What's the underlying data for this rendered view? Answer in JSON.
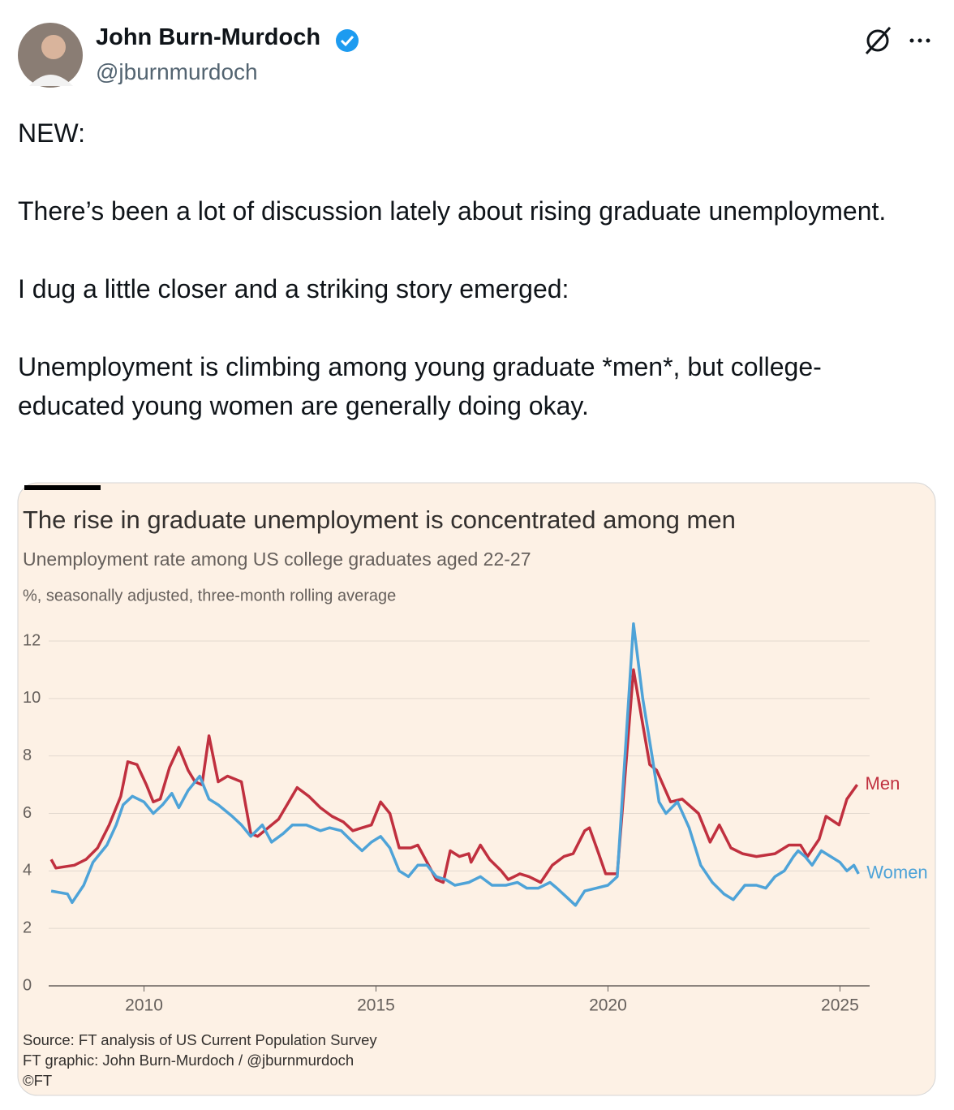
{
  "tweet": {
    "name": "John Burn-Murdoch",
    "handle": "@jburnmurdoch",
    "paragraphs": [
      "NEW:",
      "There’s been a lot of discussion lately about rising graduate unemployment.",
      "I dug a little closer and a striking story emerged:",
      "Unemployment is climbing among young graduate *men*, but college-educated young women are generally doing okay."
    ]
  },
  "chart_data": {
    "type": "line",
    "title": "The rise in graduate unemployment is concentrated among men",
    "subtitle": "Unemployment rate among US college graduates aged 22-27",
    "y_label": "%, seasonally adjusted, three-month rolling average",
    "notes": [
      "Source: FT analysis of US Current Population Survey",
      "FT graphic: John Burn-Murdoch / @jburnmurdoch",
      "©FT"
    ],
    "xlim": [
      2007.98,
      2025.64
    ],
    "xticks": [
      2010,
      2015,
      2020,
      2025
    ],
    "ylim": [
      0,
      12
    ],
    "yticks": [
      0,
      2,
      4,
      6,
      8,
      10,
      12
    ],
    "grid": true,
    "series": [
      {
        "name": "Men",
        "color": "#c0303f",
        "x": [
          2008.0,
          2008.1,
          2008.5,
          2008.75,
          2009.0,
          2009.25,
          2009.5,
          2009.65,
          2009.85,
          2010.05,
          2010.2,
          2010.35,
          2010.55,
          2010.75,
          2010.95,
          2011.1,
          2011.25,
          2011.4,
          2011.6,
          2011.8,
          2012.1,
          2012.3,
          2012.45,
          2012.9,
          2013.3,
          2013.55,
          2013.8,
          2014.05,
          2014.3,
          2014.5,
          2014.7,
          2014.9,
          2015.1,
          2015.3,
          2015.5,
          2015.75,
          2015.9,
          2016.1,
          2016.3,
          2016.45,
          2016.6,
          2016.8,
          2017.0,
          2017.05,
          2017.25,
          2017.45,
          2017.7,
          2017.85,
          2018.1,
          2018.3,
          2018.55,
          2018.8,
          2019.05,
          2019.25,
          2019.5,
          2019.6,
          2019.8,
          2019.95,
          2020.2,
          2020.55,
          2020.75,
          2020.9,
          2021.05,
          2021.35,
          2021.6,
          2021.95,
          2022.2,
          2022.4,
          2022.65,
          2022.9,
          2023.2,
          2023.6,
          2023.9,
          2024.15,
          2024.3,
          2024.55,
          2024.7,
          2024.98,
          2025.15,
          2025.37
        ],
        "values": [
          4.4,
          4.1,
          4.2,
          4.4,
          4.8,
          5.6,
          6.6,
          7.8,
          7.7,
          7.0,
          6.4,
          6.5,
          7.6,
          8.3,
          7.5,
          7.1,
          7.0,
          8.7,
          7.1,
          7.3,
          7.1,
          5.3,
          5.2,
          5.8,
          6.9,
          6.6,
          6.2,
          5.9,
          5.7,
          5.4,
          5.5,
          5.6,
          6.4,
          6.0,
          4.8,
          4.8,
          4.9,
          4.3,
          3.7,
          3.6,
          4.7,
          4.5,
          4.6,
          4.3,
          4.9,
          4.4,
          4.0,
          3.7,
          3.9,
          3.8,
          3.6,
          4.2,
          4.5,
          4.6,
          5.4,
          5.5,
          4.6,
          3.9,
          3.9,
          11.0,
          9.1,
          7.7,
          7.5,
          6.4,
          6.5,
          6.0,
          5.0,
          5.6,
          4.8,
          4.6,
          4.5,
          4.6,
          4.9,
          4.9,
          4.5,
          5.1,
          5.9,
          5.6,
          6.5,
          7.0
        ]
      },
      {
        "name": "Women",
        "color": "#4ea3d8",
        "x": [
          2008.0,
          2008.35,
          2008.45,
          2008.7,
          2008.9,
          2009.2,
          2009.4,
          2009.55,
          2009.75,
          2010.0,
          2010.2,
          2010.4,
          2010.6,
          2010.75,
          2010.95,
          2011.2,
          2011.4,
          2011.6,
          2011.9,
          2012.1,
          2012.3,
          2012.55,
          2012.75,
          2013.0,
          2013.2,
          2013.5,
          2013.8,
          2014.0,
          2014.25,
          2014.5,
          2014.7,
          2014.9,
          2015.1,
          2015.3,
          2015.5,
          2015.7,
          2015.9,
          2016.1,
          2016.3,
          2016.5,
          2016.7,
          2017.0,
          2017.25,
          2017.5,
          2017.8,
          2018.05,
          2018.25,
          2018.5,
          2018.75,
          2018.9,
          2019.1,
          2019.3,
          2019.5,
          2019.75,
          2020.0,
          2020.2,
          2020.55,
          2020.75,
          2020.95,
          2021.1,
          2021.25,
          2021.5,
          2021.75,
          2022.0,
          2022.25,
          2022.5,
          2022.7,
          2022.95,
          2023.2,
          2023.4,
          2023.6,
          2023.8,
          2024.0,
          2024.1,
          2024.25,
          2024.4,
          2024.6,
          2024.8,
          2025.0,
          2025.15,
          2025.3,
          2025.4
        ],
        "values": [
          3.3,
          3.2,
          2.9,
          3.5,
          4.3,
          4.9,
          5.6,
          6.3,
          6.6,
          6.4,
          6.0,
          6.3,
          6.7,
          6.2,
          6.8,
          7.3,
          6.5,
          6.3,
          5.9,
          5.6,
          5.2,
          5.6,
          5.0,
          5.3,
          5.6,
          5.6,
          5.4,
          5.5,
          5.4,
          5.0,
          4.7,
          5.0,
          5.2,
          4.8,
          4.0,
          3.8,
          4.2,
          4.2,
          3.8,
          3.7,
          3.5,
          3.6,
          3.8,
          3.5,
          3.5,
          3.6,
          3.4,
          3.4,
          3.6,
          3.4,
          3.1,
          2.8,
          3.3,
          3.4,
          3.5,
          3.8,
          12.6,
          10.0,
          8.0,
          6.4,
          6.0,
          6.4,
          5.5,
          4.2,
          3.6,
          3.2,
          3.0,
          3.5,
          3.5,
          3.4,
          3.8,
          4.0,
          4.5,
          4.7,
          4.5,
          4.2,
          4.7,
          4.5,
          4.3,
          4.0,
          4.2,
          3.9
        ]
      }
    ]
  }
}
